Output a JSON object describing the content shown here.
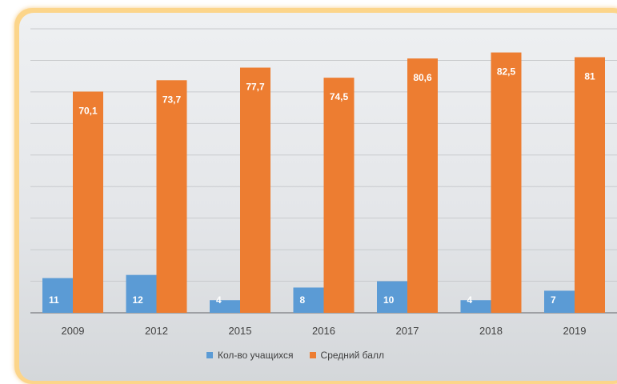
{
  "chart_data": {
    "type": "bar",
    "title": "",
    "xlabel": "",
    "ylabel": "",
    "categories": [
      "2009",
      "2012",
      "2015",
      "2016",
      "2017",
      "2018",
      "2019"
    ],
    "ylim": [
      0,
      90
    ],
    "grid": true,
    "legend": "bottom",
    "series": [
      {
        "name": "Кол-во учащихся",
        "values": [
          11,
          12,
          4,
          8,
          10,
          4,
          7
        ],
        "labels": [
          "11",
          "12",
          "4",
          "8",
          "10",
          "4",
          "7"
        ],
        "color": "#5b9bd5"
      },
      {
        "name": "Средний балл",
        "values": [
          70.1,
          73.7,
          77.7,
          74.5,
          80.6,
          82.5,
          81
        ],
        "labels": [
          "70,1",
          "73,7",
          "77,7",
          "74,5",
          "80,6",
          "82,5",
          "81"
        ],
        "color": "#ed7d31"
      }
    ]
  }
}
